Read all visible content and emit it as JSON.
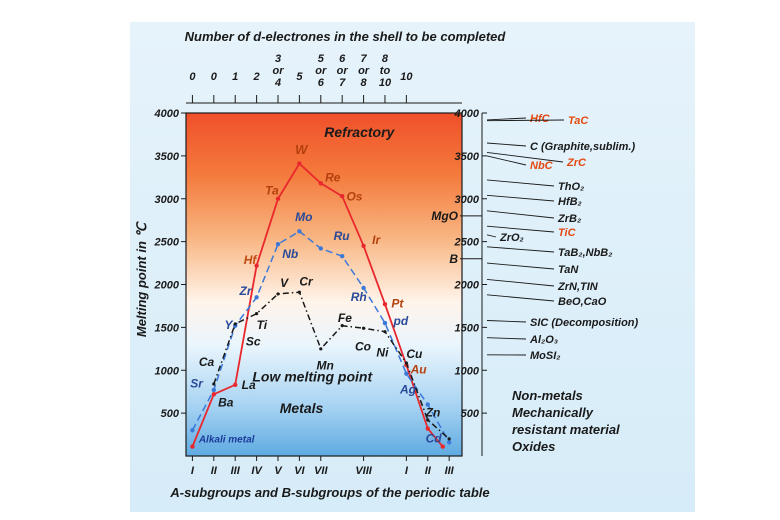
{
  "chart_data": {
    "type": "line",
    "title": "Number of d-electrones in the shell to be completed",
    "xlabel": "A-subgroups and B-subgroups of the periodic table",
    "ylabel": "Melting point in ℃",
    "ylim": [
      0,
      4000
    ],
    "y_ticks": [
      "500",
      "1000",
      "1500",
      "2000",
      "2500",
      "3000",
      "3500",
      "4000"
    ],
    "right_axis_ticks": [
      "500",
      "1000",
      "1500",
      "2000",
      "2500",
      "3000",
      "3500",
      "4000"
    ],
    "top_ticks": [
      {
        "pos": 0,
        "label": "0"
      },
      {
        "pos": 1,
        "label": "0"
      },
      {
        "pos": 2,
        "label": "1"
      },
      {
        "pos": 3,
        "label": "2"
      },
      {
        "pos": 4,
        "label": "3\nor\n4"
      },
      {
        "pos": 5,
        "label": "5"
      },
      {
        "pos": 6,
        "label": "5\nor\n6"
      },
      {
        "pos": 7,
        "label": "6\nor\n7"
      },
      {
        "pos": 8,
        "label": "7\nor\n8"
      },
      {
        "pos": 9,
        "label": "8\nto\n10"
      },
      {
        "pos": 10,
        "label": "10"
      }
    ],
    "x_ticks": [
      {
        "pos": 0,
        "label": "I"
      },
      {
        "pos": 1,
        "label": "II"
      },
      {
        "pos": 2,
        "label": "III"
      },
      {
        "pos": 3,
        "label": "IV"
      },
      {
        "pos": 4,
        "label": "V"
      },
      {
        "pos": 5,
        "label": "VI"
      },
      {
        "pos": 6,
        "label": "VII"
      },
      {
        "pos": 8,
        "label": "VIII"
      },
      {
        "pos": 10,
        "label": "I"
      },
      {
        "pos": 11,
        "label": "II"
      },
      {
        "pos": 12,
        "label": "III"
      }
    ],
    "xlim": [
      -0.3,
      12.6
    ],
    "series": [
      {
        "style": "solid",
        "color": "#e8282d",
        "points": [
          {
            "x": 0.0,
            "y": 110
          },
          {
            "x": 1.0,
            "y": 720
          },
          {
            "x": 2.0,
            "y": 830
          },
          {
            "x": 3.0,
            "y": 2220
          },
          {
            "x": 4.0,
            "y": 3000
          },
          {
            "x": 5.0,
            "y": 3410
          },
          {
            "x": 6.0,
            "y": 3180
          },
          {
            "x": 7.0,
            "y": 3030
          },
          {
            "x": 8.0,
            "y": 2450
          },
          {
            "x": 9.0,
            "y": 1770
          },
          {
            "x": 10.0,
            "y": 1060
          },
          {
            "x": 11.0,
            "y": 320
          },
          {
            "x": 11.7,
            "y": 110
          }
        ]
      },
      {
        "style": "dashed",
        "color": "#3b78d8",
        "points": [
          {
            "x": 0.0,
            "y": 300
          },
          {
            "x": 1.0,
            "y": 770
          },
          {
            "x": 2.0,
            "y": 1520
          },
          {
            "x": 3.0,
            "y": 1850
          },
          {
            "x": 4.0,
            "y": 2470
          },
          {
            "x": 5.0,
            "y": 2620
          },
          {
            "x": 6.0,
            "y": 2420
          },
          {
            "x": 7.0,
            "y": 2330
          },
          {
            "x": 8.0,
            "y": 1960
          },
          {
            "x": 9.0,
            "y": 1550
          },
          {
            "x": 10.0,
            "y": 960
          },
          {
            "x": 11.0,
            "y": 600
          },
          {
            "x": 12.0,
            "y": 160
          }
        ]
      },
      {
        "style": "dashdot",
        "color": "#1a1a1a",
        "points": [
          {
            "x": 1.0,
            "y": 840
          },
          {
            "x": 2.0,
            "y": 1540
          },
          {
            "x": 3.0,
            "y": 1660
          },
          {
            "x": 4.0,
            "y": 1890
          },
          {
            "x": 5.0,
            "y": 1910
          },
          {
            "x": 6.0,
            "y": 1250
          },
          {
            "x": 7.0,
            "y": 1520
          },
          {
            "x": 8.0,
            "y": 1490
          },
          {
            "x": 9.0,
            "y": 1450
          },
          {
            "x": 10.0,
            "y": 1085
          },
          {
            "x": 11.0,
            "y": 420
          },
          {
            "x": 12.0,
            "y": 200
          }
        ]
      }
    ],
    "element_labels": [
      {
        "text": "Alkali metal",
        "x": 0.3,
        "y": 160,
        "color": "#1a3a9a",
        "size": 10
      },
      {
        "text": "Ca",
        "x": 0.3,
        "y": 1050,
        "color": "#1a1a1a",
        "size": 12
      },
      {
        "text": "Sr",
        "x": -0.1,
        "y": 800,
        "color": "#2a4a9a",
        "size": 12
      },
      {
        "text": "Ba",
        "x": 1.2,
        "y": 580,
        "color": "#1a1a1a",
        "size": 12
      },
      {
        "text": "La",
        "x": 2.3,
        "y": 780,
        "color": "#1a1a1a",
        "size": 12
      },
      {
        "text": "Sc",
        "x": 2.5,
        "y": 1290,
        "color": "#1a1a1a",
        "size": 12
      },
      {
        "text": "Y",
        "x": 1.5,
        "y": 1480,
        "color": "#2a4a9a",
        "size": 12
      },
      {
        "text": "Ti",
        "x": 3.0,
        "y": 1480,
        "color": "#1a1a1a",
        "size": 12
      },
      {
        "text": "Zr",
        "x": 2.2,
        "y": 1880,
        "color": "#2a4a9a",
        "size": 12
      },
      {
        "text": "Hf",
        "x": 2.4,
        "y": 2240,
        "color": "#c24a10",
        "size": 12
      },
      {
        "text": "Ta",
        "x": 3.4,
        "y": 3050,
        "color": "#b5400f",
        "size": 12
      },
      {
        "text": "Nb",
        "x": 4.2,
        "y": 2310,
        "color": "#2a4a9a",
        "size": 12
      },
      {
        "text": "V",
        "x": 4.1,
        "y": 1970,
        "color": "#1a1a1a",
        "size": 12
      },
      {
        "text": "Cr",
        "x": 5.0,
        "y": 1990,
        "color": "#1a1a1a",
        "size": 12
      },
      {
        "text": "W",
        "x": 4.8,
        "y": 3520,
        "color": "#b5400f",
        "size": 13
      },
      {
        "text": "Mo",
        "x": 4.8,
        "y": 2740,
        "color": "#2a4a9a",
        "size": 12
      },
      {
        "text": "Re",
        "x": 6.2,
        "y": 3200,
        "color": "#b5400f",
        "size": 12
      },
      {
        "text": "Os",
        "x": 7.2,
        "y": 2980,
        "color": "#b5400f",
        "size": 12
      },
      {
        "text": "Ru",
        "x": 6.6,
        "y": 2520,
        "color": "#2a4a9a",
        "size": 12
      },
      {
        "text": "Ir",
        "x": 8.4,
        "y": 2470,
        "color": "#b5400f",
        "size": 12
      },
      {
        "text": "Rh",
        "x": 7.4,
        "y": 1810,
        "color": "#2a4a9a",
        "size": 12
      },
      {
        "text": "Fe",
        "x": 6.8,
        "y": 1560,
        "color": "#1a1a1a",
        "size": 12
      },
      {
        "text": "Co",
        "x": 7.6,
        "y": 1230,
        "color": "#1a1a1a",
        "size": 12
      },
      {
        "text": "Mn",
        "x": 5.8,
        "y": 1010,
        "color": "#1a1a1a",
        "size": 12
      },
      {
        "text": "Ni",
        "x": 8.6,
        "y": 1160,
        "color": "#1a1a1a",
        "size": 12
      },
      {
        "text": "Pt",
        "x": 9.3,
        "y": 1730,
        "color": "#b5400f",
        "size": 12
      },
      {
        "text": "pd",
        "x": 9.4,
        "y": 1530,
        "color": "#2a4a9a",
        "size": 12
      },
      {
        "text": "Cu",
        "x": 10.0,
        "y": 1140,
        "color": "#1a1a1a",
        "size": 12
      },
      {
        "text": "Au",
        "x": 10.2,
        "y": 960,
        "color": "#b5400f",
        "size": 12
      },
      {
        "text": "Ag",
        "x": 9.7,
        "y": 730,
        "color": "#2a4a9a",
        "size": 12
      },
      {
        "text": "Zn",
        "x": 10.9,
        "y": 460,
        "color": "#1a1a1a",
        "size": 12
      },
      {
        "text": "Cd",
        "x": 10.9,
        "y": 160,
        "color": "#2a4a9a",
        "size": 12
      }
    ],
    "region_labels": [
      {
        "text": "Refractory",
        "x": 7.8,
        "y": 3720,
        "size": 14
      },
      {
        "text": "Low melting point",
        "x": 5.6,
        "y": 870,
        "size": 14
      },
      {
        "text": "Metals",
        "x": 5.1,
        "y": 500,
        "size": 14
      }
    ],
    "right_mid_labels": [
      {
        "text": "MgO",
        "y": 2800
      },
      {
        "text": "B",
        "y": 2300
      }
    ],
    "compounds": [
      {
        "text": "HfC",
        "y": 3920,
        "color": "#e24a10"
      },
      {
        "text": "TaC",
        "y": 3910,
        "color": "#e24a10"
      },
      {
        "text": "C (Graphite,sublim.)",
        "y": 3650,
        "color": "#1a1a1a"
      },
      {
        "text": "NbC",
        "y": 3500,
        "color": "#e24a10"
      },
      {
        "text": "ZrC",
        "y": 3540,
        "color": "#e24a10"
      },
      {
        "text": "ThO₂",
        "y": 3220,
        "color": "#1a1a1a"
      },
      {
        "text": "HfB₂",
        "y": 3040,
        "color": "#1a1a1a"
      },
      {
        "text": "ZrB₂",
        "y": 2860,
        "color": "#1a1a1a"
      },
      {
        "text": "TiC",
        "y": 2680,
        "color": "#e24a10"
      },
      {
        "text": "ZrO₂",
        "y": 2580,
        "color": "#1a1a1a"
      },
      {
        "text": "TaB₂,NbB₂",
        "y": 2440,
        "color": "#1a1a1a"
      },
      {
        "text": "TaN",
        "y": 2250,
        "color": "#1a1a1a"
      },
      {
        "text": "ZrN,TIN",
        "y": 2060,
        "color": "#1a1a1a"
      },
      {
        "text": "BeO,CaO",
        "y": 1880,
        "color": "#1a1a1a"
      },
      {
        "text": "SIC (Decomposition)",
        "y": 1580,
        "color": "#1a1a1a"
      },
      {
        "text": "Al₂O₃",
        "y": 1380,
        "color": "#1a1a1a"
      },
      {
        "text": "MoSI₂",
        "y": 1180,
        "color": "#1a1a1a"
      }
    ],
    "bottom_right_note": [
      "Non-metals",
      "Mechanically",
      "resistant material",
      "Oxides"
    ]
  }
}
